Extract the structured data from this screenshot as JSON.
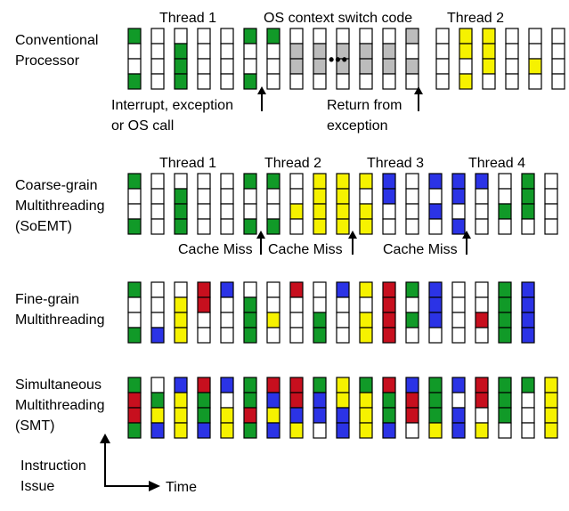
{
  "palette": {
    "G": "#119a28",
    "Y": "#f6f200",
    "R": "#c70f1e",
    "B": "#2b33e6",
    "S": "#bcbcbc",
    "W": "#ffffff"
  },
  "rows": [
    {
      "name": "conventional",
      "label": [
        "Conventional",
        "Processor"
      ],
      "headers": [
        "Thread 1",
        "OS context switch code",
        "Thread 2"
      ],
      "columns": [
        "GWWG",
        "WWWW",
        "WGGG",
        "WWWW",
        "WWWW",
        "GWWG",
        "GWWW",
        "WSSW",
        "WSSW",
        "WSSW",
        "WSSW",
        "WSSW",
        "SWSW",
        "WWWW",
        "YYWY",
        "YYYW",
        "WWWW",
        "WWYW",
        "WWWW"
      ],
      "ellipsis": "•••",
      "annotations": [
        [
          "Interrupt, exception",
          "or OS call"
        ],
        [
          "Return from",
          "exception"
        ]
      ]
    },
    {
      "name": "coarse-grain",
      "label": [
        "Coarse-grain",
        "Multithreading",
        "(SoEMT)"
      ],
      "headers": [
        "Thread 1",
        "Thread 2",
        "Thread 3",
        "Thread 4"
      ],
      "columns": [
        "GWWG",
        "WWWW",
        "WGGG",
        "WWWW",
        "WWWW",
        "GWWG",
        "GWWG",
        "WWYW",
        "YYYY",
        "YYYY",
        "YWYY",
        "BBWW",
        "WWWW",
        "BWBW",
        "BBWB",
        "BWWW",
        "WWGW",
        "GGGW",
        "WWWW"
      ],
      "annotations": [
        "Cache Miss",
        "Cache Miss",
        "Cache Miss"
      ]
    },
    {
      "name": "fine-grain",
      "label": [
        "Fine-grain",
        "Multithreading"
      ],
      "columns": [
        "GWWG",
        "WWWB",
        "WYYY",
        "RRWW",
        "BWWW",
        "WGGG",
        "WWYW",
        "RWWW",
        "WWGG",
        "BWWW",
        "YWYY",
        "RRRR",
        "GWGW",
        "BBBW",
        "WWWW",
        "WWRW",
        "GGGG",
        "BBBB"
      ]
    },
    {
      "name": "simultaneous",
      "label": [
        "Simultaneous",
        "Multithreading",
        "(SMT)"
      ],
      "columns": [
        "GRRG",
        "WGYB",
        "BYYY",
        "RGGB",
        "BWYY",
        "GGRG",
        "RBYB",
        "RRBY",
        "GBBW",
        "YYBB",
        "GYYY",
        "RGGB",
        "BRRW",
        "GGGY",
        "BWBB",
        "RRWY",
        "GGGW",
        "GWWW",
        "YYYY"
      ]
    }
  ],
  "axis": {
    "y_label": [
      "Instruction",
      "Issue"
    ],
    "x_label": "Time"
  }
}
